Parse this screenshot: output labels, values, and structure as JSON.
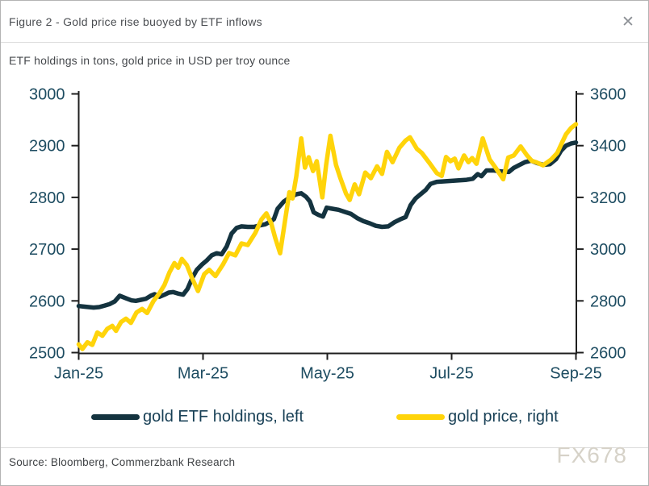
{
  "header": {
    "title": "Figure 2 - Gold price rise buoyed by ETF inflows",
    "close_icon": "✕"
  },
  "subtitle": "ETF holdings in tons, gold price in USD per troy ounce",
  "footer": {
    "source": "Source: Bloomberg, Commerzbank Research",
    "watermark": "FX678"
  },
  "chart_data": {
    "type": "line",
    "title": "Figure 2 - Gold price rise buoyed by ETF inflows",
    "subtitle": "ETF holdings in tons, gold price in USD per troy ounce",
    "x_unit": "months since Jan-2025 tick (0 = Jan-25, 8 = Sep-25)",
    "x_axis": {
      "tick_labels": [
        "Jan-25",
        "Mar-25",
        "May-25",
        "Jul-25",
        "Sep-25"
      ],
      "range": [
        0,
        8
      ]
    },
    "left_axis": {
      "label": "ETF holdings in tons",
      "ticks": [
        3000,
        2900,
        2800,
        2700,
        2600,
        2500
      ],
      "range": [
        2500,
        3000
      ]
    },
    "right_axis": {
      "label": "gold price in USD per troy ounce",
      "ticks": [
        3600,
        3400,
        3200,
        3000,
        2800,
        2600
      ],
      "range": [
        2600,
        3600
      ]
    },
    "axis_color": "#1f1f1f",
    "tick_label_color": "#1d4c61",
    "grid": false,
    "legend_position": "bottom",
    "series": [
      {
        "name": "gold ETF holdings, left",
        "axis": "left",
        "color": "#14333f",
        "points": [
          [
            0.0,
            2590
          ],
          [
            0.08,
            2589
          ],
          [
            0.16,
            2588
          ],
          [
            0.24,
            2587
          ],
          [
            0.33,
            2588
          ],
          [
            0.42,
            2591
          ],
          [
            0.5,
            2594
          ],
          [
            0.58,
            2599
          ],
          [
            0.66,
            2610
          ],
          [
            0.72,
            2607
          ],
          [
            0.78,
            2604
          ],
          [
            0.85,
            2601
          ],
          [
            0.92,
            2600
          ],
          [
            1.0,
            2602
          ],
          [
            1.08,
            2604
          ],
          [
            1.16,
            2610
          ],
          [
            1.22,
            2613
          ],
          [
            1.3,
            2608
          ],
          [
            1.38,
            2612
          ],
          [
            1.45,
            2616
          ],
          [
            1.52,
            2617
          ],
          [
            1.6,
            2614
          ],
          [
            1.68,
            2612
          ],
          [
            1.75,
            2623
          ],
          [
            1.83,
            2645
          ],
          [
            1.9,
            2660
          ],
          [
            1.98,
            2670
          ],
          [
            2.06,
            2678
          ],
          [
            2.14,
            2688
          ],
          [
            2.22,
            2692
          ],
          [
            2.3,
            2690
          ],
          [
            2.38,
            2705
          ],
          [
            2.46,
            2730
          ],
          [
            2.54,
            2741
          ],
          [
            2.62,
            2744
          ],
          [
            2.72,
            2743
          ],
          [
            2.82,
            2743
          ],
          [
            2.92,
            2746
          ],
          [
            3.0,
            2748
          ],
          [
            3.08,
            2753
          ],
          [
            3.14,
            2758
          ],
          [
            3.2,
            2778
          ],
          [
            3.3,
            2792
          ],
          [
            3.4,
            2800
          ],
          [
            3.5,
            2806
          ],
          [
            3.58,
            2808
          ],
          [
            3.66,
            2801
          ],
          [
            3.72,
            2792
          ],
          [
            3.78,
            2771
          ],
          [
            3.86,
            2766
          ],
          [
            3.93,
            2763
          ],
          [
            3.99,
            2780
          ],
          [
            4.08,
            2778
          ],
          [
            4.18,
            2776
          ],
          [
            4.28,
            2772
          ],
          [
            4.38,
            2768
          ],
          [
            4.48,
            2760
          ],
          [
            4.58,
            2754
          ],
          [
            4.68,
            2750
          ],
          [
            4.78,
            2745
          ],
          [
            4.88,
            2743
          ],
          [
            4.98,
            2744
          ],
          [
            5.08,
            2752
          ],
          [
            5.18,
            2758
          ],
          [
            5.26,
            2762
          ],
          [
            5.34,
            2785
          ],
          [
            5.42,
            2798
          ],
          [
            5.5,
            2806
          ],
          [
            5.58,
            2814
          ],
          [
            5.66,
            2826
          ],
          [
            5.76,
            2830
          ],
          [
            5.88,
            2831
          ],
          [
            6.0,
            2832
          ],
          [
            6.12,
            2833
          ],
          [
            6.24,
            2834
          ],
          [
            6.34,
            2836
          ],
          [
            6.42,
            2845
          ],
          [
            6.48,
            2841
          ],
          [
            6.56,
            2852
          ],
          [
            6.68,
            2852
          ],
          [
            6.8,
            2850
          ],
          [
            6.92,
            2849
          ],
          [
            7.0,
            2857
          ],
          [
            7.08,
            2862
          ],
          [
            7.18,
            2868
          ],
          [
            7.28,
            2871
          ],
          [
            7.38,
            2866
          ],
          [
            7.48,
            2863
          ],
          [
            7.58,
            2864
          ],
          [
            7.68,
            2874
          ],
          [
            7.76,
            2890
          ],
          [
            7.84,
            2900
          ],
          [
            7.92,
            2904
          ],
          [
            8.0,
            2906
          ]
        ]
      },
      {
        "name": "gold price, right",
        "axis": "right",
        "color": "#ffd40a",
        "points": [
          [
            0.0,
            2632
          ],
          [
            0.06,
            2614
          ],
          [
            0.14,
            2640
          ],
          [
            0.22,
            2630
          ],
          [
            0.3,
            2678
          ],
          [
            0.38,
            2665
          ],
          [
            0.46,
            2692
          ],
          [
            0.54,
            2703
          ],
          [
            0.6,
            2684
          ],
          [
            0.68,
            2718
          ],
          [
            0.76,
            2731
          ],
          [
            0.84,
            2715
          ],
          [
            0.93,
            2755
          ],
          [
            1.02,
            2769
          ],
          [
            1.1,
            2753
          ],
          [
            1.2,
            2798
          ],
          [
            1.3,
            2830
          ],
          [
            1.38,
            2862
          ],
          [
            1.46,
            2910
          ],
          [
            1.54,
            2946
          ],
          [
            1.6,
            2928
          ],
          [
            1.66,
            2962
          ],
          [
            1.74,
            2938
          ],
          [
            1.82,
            2890
          ],
          [
            1.92,
            2838
          ],
          [
            2.02,
            2903
          ],
          [
            2.1,
            2920
          ],
          [
            2.2,
            2896
          ],
          [
            2.32,
            2940
          ],
          [
            2.42,
            2985
          ],
          [
            2.52,
            2976
          ],
          [
            2.62,
            3022
          ],
          [
            2.72,
            3016
          ],
          [
            2.84,
            3062
          ],
          [
            2.94,
            3115
          ],
          [
            3.02,
            3138
          ],
          [
            3.1,
            3098
          ],
          [
            3.16,
            3045
          ],
          [
            3.24,
            2984
          ],
          [
            3.32,
            3110
          ],
          [
            3.39,
            3220
          ],
          [
            3.44,
            3196
          ],
          [
            3.5,
            3280
          ],
          [
            3.58,
            3428
          ],
          [
            3.64,
            3315
          ],
          [
            3.7,
            3355
          ],
          [
            3.77,
            3302
          ],
          [
            3.83,
            3340
          ],
          [
            3.92,
            3200
          ],
          [
            3.98,
            3325
          ],
          [
            4.05,
            3438
          ],
          [
            4.14,
            3325
          ],
          [
            4.21,
            3274
          ],
          [
            4.3,
            3215
          ],
          [
            4.36,
            3190
          ],
          [
            4.44,
            3250
          ],
          [
            4.51,
            3212
          ],
          [
            4.61,
            3296
          ],
          [
            4.7,
            3274
          ],
          [
            4.8,
            3320
          ],
          [
            4.88,
            3291
          ],
          [
            4.96,
            3376
          ],
          [
            5.05,
            3336
          ],
          [
            5.16,
            3392
          ],
          [
            5.26,
            3420
          ],
          [
            5.33,
            3432
          ],
          [
            5.44,
            3388
          ],
          [
            5.52,
            3372
          ],
          [
            5.64,
            3334
          ],
          [
            5.76,
            3294
          ],
          [
            5.84,
            3283
          ],
          [
            5.91,
            3356
          ],
          [
            5.98,
            3340
          ],
          [
            6.05,
            3350
          ],
          [
            6.11,
            3312
          ],
          [
            6.2,
            3362
          ],
          [
            6.27,
            3336
          ],
          [
            6.33,
            3352
          ],
          [
            6.4,
            3330
          ],
          [
            6.5,
            3428
          ],
          [
            6.61,
            3347
          ],
          [
            6.7,
            3317
          ],
          [
            6.83,
            3270
          ],
          [
            6.91,
            3354
          ],
          [
            7.0,
            3362
          ],
          [
            7.11,
            3397
          ],
          [
            7.21,
            3363
          ],
          [
            7.29,
            3341
          ],
          [
            7.36,
            3336
          ],
          [
            7.47,
            3324
          ],
          [
            7.6,
            3346
          ],
          [
            7.7,
            3372
          ],
          [
            7.78,
            3414
          ],
          [
            7.84,
            3444
          ],
          [
            7.92,
            3468
          ],
          [
            8.0,
            3483
          ]
        ]
      }
    ]
  }
}
